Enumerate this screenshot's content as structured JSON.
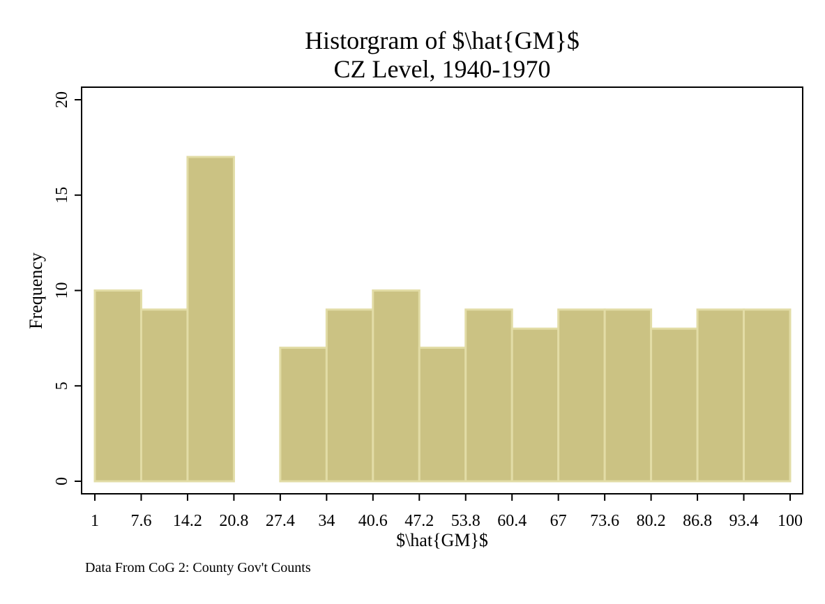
{
  "chart_data": {
    "type": "bar",
    "title": "Historgram of $\\hat{GM}$",
    "subtitle": "CZ Level, 1940-1970",
    "xlabel": "$\\hat{GM}$",
    "ylabel": "Frequency",
    "note": "Data From CoG 2: County Gov't Counts",
    "x_ticks": [
      "1",
      "7.6",
      "14.2",
      "20.8",
      "27.4",
      "34",
      "40.6",
      "47.2",
      "53.8",
      "60.4",
      "67",
      "73.6",
      "80.2",
      "86.8",
      "93.4",
      "100"
    ],
    "y_ticks": [
      "0",
      "5",
      "10",
      "15",
      "20"
    ],
    "xlim": [
      1,
      100
    ],
    "ylim": [
      0,
      20
    ],
    "bin_edges": [
      1,
      7.6,
      14.2,
      20.8,
      27.4,
      34,
      40.6,
      47.2,
      53.8,
      60.4,
      67,
      73.6,
      80.2,
      86.8,
      93.4,
      100
    ],
    "values": [
      10,
      9,
      17,
      0,
      7,
      9,
      10,
      7,
      9,
      8,
      9,
      9,
      8,
      9,
      9
    ],
    "bar_color": "#cbc283",
    "bar_outline_color": "#e2dca6",
    "grid": false,
    "legend": "none"
  }
}
